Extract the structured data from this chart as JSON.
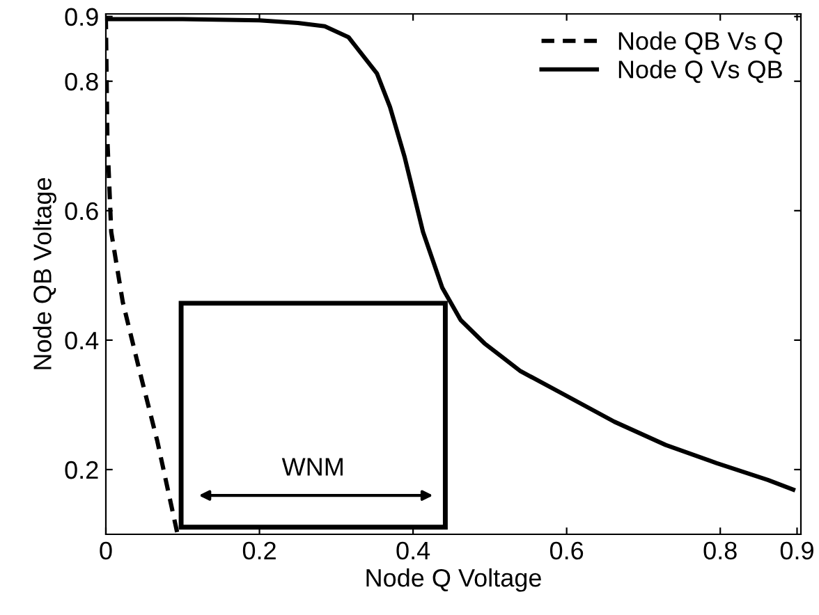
{
  "chart_data": {
    "type": "line",
    "xlabel": "Node Q Voltage",
    "ylabel": "Node QB Voltage",
    "xlim": [
      0,
      0.905
    ],
    "ylim": [
      0.1,
      0.904
    ],
    "xticks": [
      0,
      0.2,
      0.4,
      0.6,
      0.8,
      0.9
    ],
    "yticks": [
      0.2,
      0.4,
      0.6,
      0.8,
      0.9
    ],
    "grid": false,
    "legend": "top right",
    "marker": "none",
    "annotations": [
      "WNM"
    ],
    "series": [
      {
        "name": "Node QB Vs Q",
        "color": "#000000",
        "line_style": "dashed",
        "x": [
          0,
          0.002,
          0.007,
          0.022,
          0.044,
          0.067,
          0.093
        ],
        "values": [
          0.9,
          0.71,
          0.567,
          0.459,
          0.352,
          0.244,
          0.102
        ]
      },
      {
        "name": "Node Q Vs QB",
        "color": "#000000",
        "line_style": "solid",
        "x": [
          0,
          0.1,
          0.2,
          0.25,
          0.285,
          0.316,
          0.353,
          0.37,
          0.389,
          0.413,
          0.438,
          0.462,
          0.493,
          0.54,
          0.595,
          0.662,
          0.729,
          0.795,
          0.862,
          0.895
        ],
        "values": [
          0.896,
          0.896,
          0.894,
          0.89,
          0.885,
          0.868,
          0.812,
          0.76,
          0.683,
          0.567,
          0.481,
          0.431,
          0.395,
          0.352,
          0.317,
          0.274,
          0.238,
          0.21,
          0.184,
          0.169
        ]
      }
    ]
  }
}
